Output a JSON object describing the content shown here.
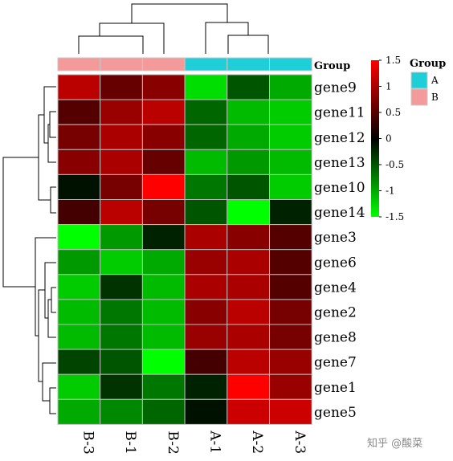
{
  "chart_data": {
    "type": "heatmap",
    "columns": [
      "B-3",
      "B-1",
      "B-2",
      "A-1",
      "A-2",
      "A-3"
    ],
    "column_groups": [
      "B",
      "B",
      "B",
      "A",
      "A",
      "A"
    ],
    "rows": [
      "gene9",
      "gene11",
      "gene12",
      "gene13",
      "gene10",
      "gene14",
      "gene3",
      "gene6",
      "gene4",
      "gene2",
      "gene8",
      "gene7",
      "gene1",
      "gene5"
    ],
    "values": [
      [
        1.1,
        0.6,
        0.8,
        -1.3,
        -0.5,
        -1.0
      ],
      [
        0.5,
        0.9,
        1.1,
        -0.6,
        -1.1,
        -1.2
      ],
      [
        0.7,
        1.0,
        0.8,
        -0.6,
        -1.0,
        -1.2
      ],
      [
        0.8,
        1.0,
        0.6,
        -1.1,
        -0.9,
        -1.1
      ],
      [
        -0.1,
        0.7,
        1.5,
        -0.7,
        -0.5,
        -1.2
      ],
      [
        0.4,
        1.1,
        0.7,
        -0.5,
        -1.6,
        -0.2
      ],
      [
        -1.5,
        -0.9,
        -0.2,
        1.0,
        0.8,
        0.5
      ],
      [
        -0.9,
        -1.2,
        -1.0,
        0.9,
        1.0,
        0.5
      ],
      [
        -1.2,
        -0.3,
        -1.1,
        1.0,
        1.0,
        0.5
      ],
      [
        -1.1,
        -0.7,
        -1.1,
        0.8,
        1.1,
        0.7
      ],
      [
        -1.1,
        -0.7,
        -1.1,
        0.9,
        1.0,
        0.7
      ],
      [
        -0.4,
        -0.5,
        -1.6,
        0.4,
        1.1,
        0.9
      ],
      [
        -1.2,
        -0.3,
        -0.7,
        -0.2,
        1.5,
        0.9
      ],
      [
        -1.0,
        -0.8,
        -0.6,
        -0.1,
        1.2,
        1.2
      ]
    ],
    "scale_range": [
      -1.5,
      1.5
    ],
    "scale_ticks": [
      "1.5",
      "1",
      "0.5",
      "0",
      "-0.5",
      "-1",
      "-1.5"
    ],
    "scale_tick_values": [
      1.5,
      1,
      0.5,
      0,
      -0.5,
      -1,
      -1.5
    ],
    "group_annotation_label": "Group",
    "group_legend": {
      "title": "Group",
      "entries": [
        {
          "name": "A",
          "color": "#1fcfd8"
        },
        {
          "name": "B",
          "color": "#f59a9a"
        }
      ]
    },
    "colors": {
      "high": "#ff0000",
      "mid": "#000000",
      "low": "#00ff00"
    },
    "row_dendrogram": "shown on left",
    "column_dendrogram": "shown on top"
  },
  "watermark": {
    "author": "知乎 @酸菜"
  }
}
